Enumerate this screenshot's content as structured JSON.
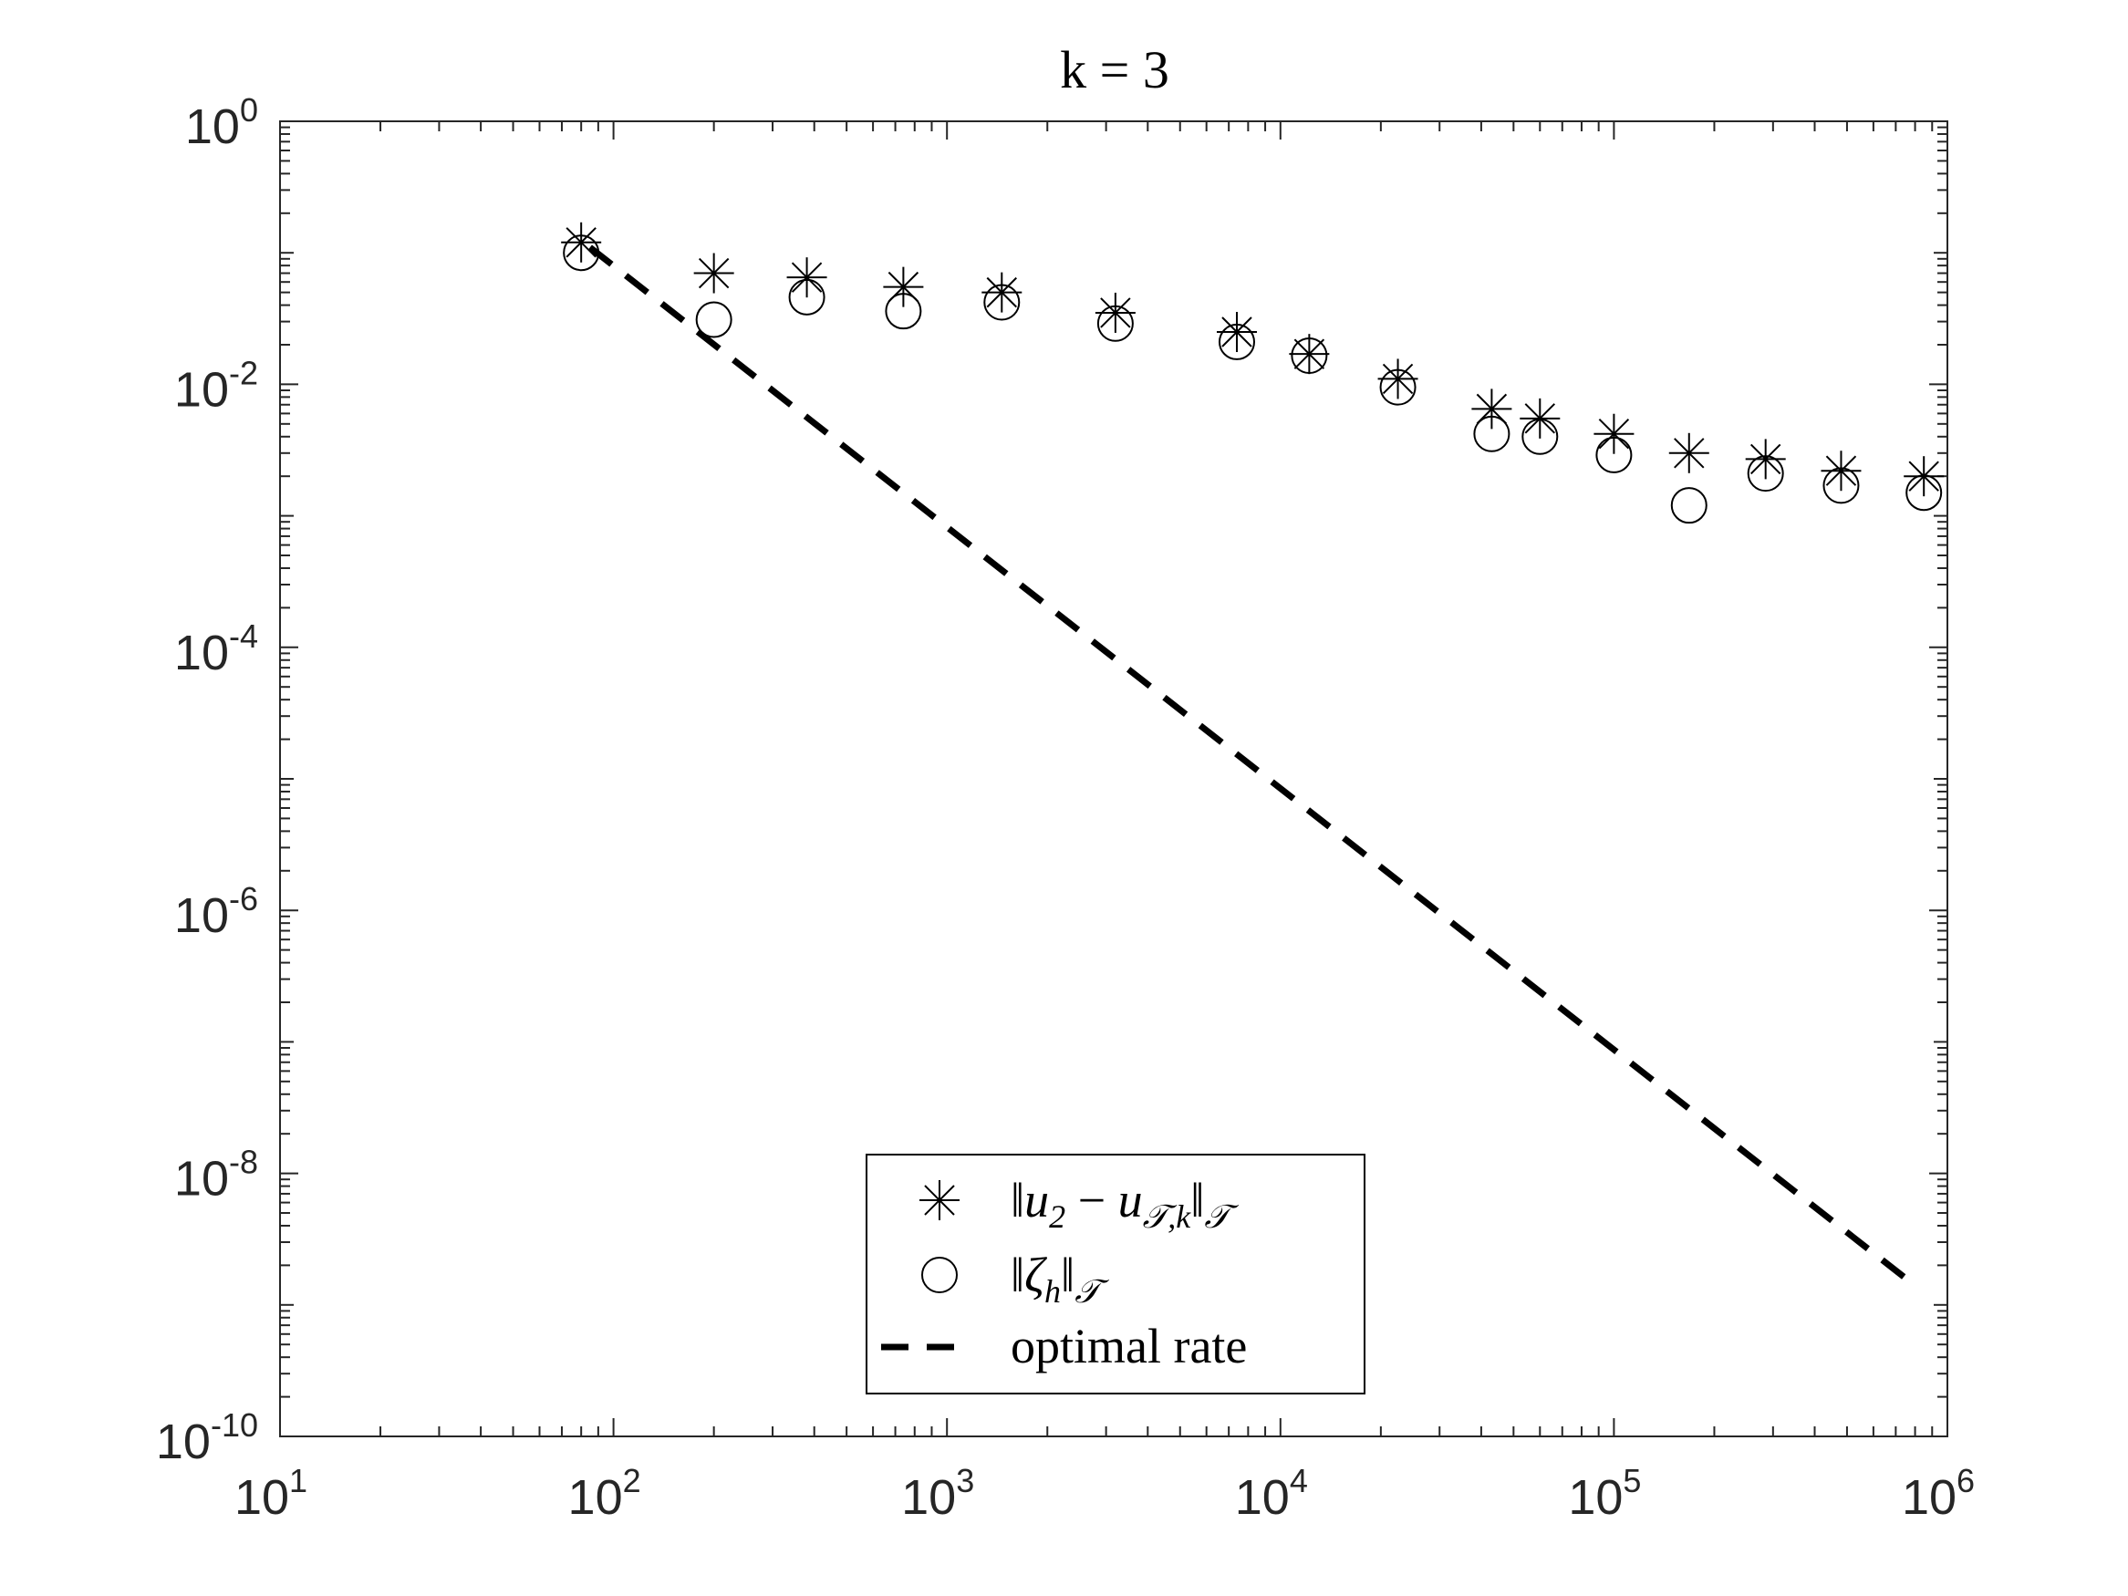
{
  "chart_data": {
    "type": "scatter",
    "title": "k = 3",
    "xlabel": "",
    "ylabel": "",
    "xscale": "log",
    "yscale": "log",
    "xlim": [
      10,
      1000000
    ],
    "ylim": [
      1e-10,
      1
    ],
    "x_ticks": [
      {
        "base": "10",
        "exp": "1"
      },
      {
        "base": "10",
        "exp": "2"
      },
      {
        "base": "10",
        "exp": "3"
      },
      {
        "base": "10",
        "exp": "4"
      },
      {
        "base": "10",
        "exp": "5"
      },
      {
        "base": "10",
        "exp": "6"
      }
    ],
    "y_ticks": [
      {
        "base": "10",
        "exp": "0"
      },
      {
        "base": "10",
        "exp": "-2"
      },
      {
        "base": "10",
        "exp": "-4"
      },
      {
        "base": "10",
        "exp": "-6"
      },
      {
        "base": "10",
        "exp": "-8"
      },
      {
        "base": "10",
        "exp": "-10"
      }
    ],
    "x": [
      80,
      200,
      380,
      740,
      1460,
      3200,
      7400,
      12200,
      22500,
      43000,
      60000,
      100000,
      168000,
      285000,
      480000,
      850000
    ],
    "series": [
      {
        "name": "‖u₂ − u_{T,k}‖_T",
        "marker": "asterisk",
        "values": [
          0.12,
          0.07,
          0.065,
          0.055,
          0.05,
          0.035,
          0.025,
          0.017,
          0.011,
          0.0065,
          0.0055,
          0.0042,
          0.003,
          0.0027,
          0.0022,
          0.002
        ]
      },
      {
        "name": "‖ζ_h‖_T",
        "marker": "circle",
        "values": [
          0.1,
          0.031,
          0.046,
          0.036,
          0.042,
          0.029,
          0.021,
          0.0165,
          0.0095,
          0.0042,
          0.004,
          0.0029,
          0.0012,
          0.0021,
          0.0017,
          0.0015
        ]
      },
      {
        "name": "optimal rate",
        "style": "dashed",
        "x": [
          85,
          800000
        ],
        "values": [
          0.11,
          1.4e-09
        ]
      }
    ],
    "legend": {
      "placement": "bottom-center",
      "entries": [
        {
          "norm_open": "‖",
          "var": "u",
          "sub": "2",
          "minus": " − ",
          "var2": "u",
          "sub2": "𝒯,k",
          "norm_close": "‖",
          "sub3": "𝒯"
        },
        {
          "norm_open": "‖",
          "var": "ζ",
          "sub": "h",
          "norm_close": "‖",
          "sub3": "𝒯"
        },
        {
          "label": "optimal rate"
        }
      ]
    },
    "grid": false
  }
}
